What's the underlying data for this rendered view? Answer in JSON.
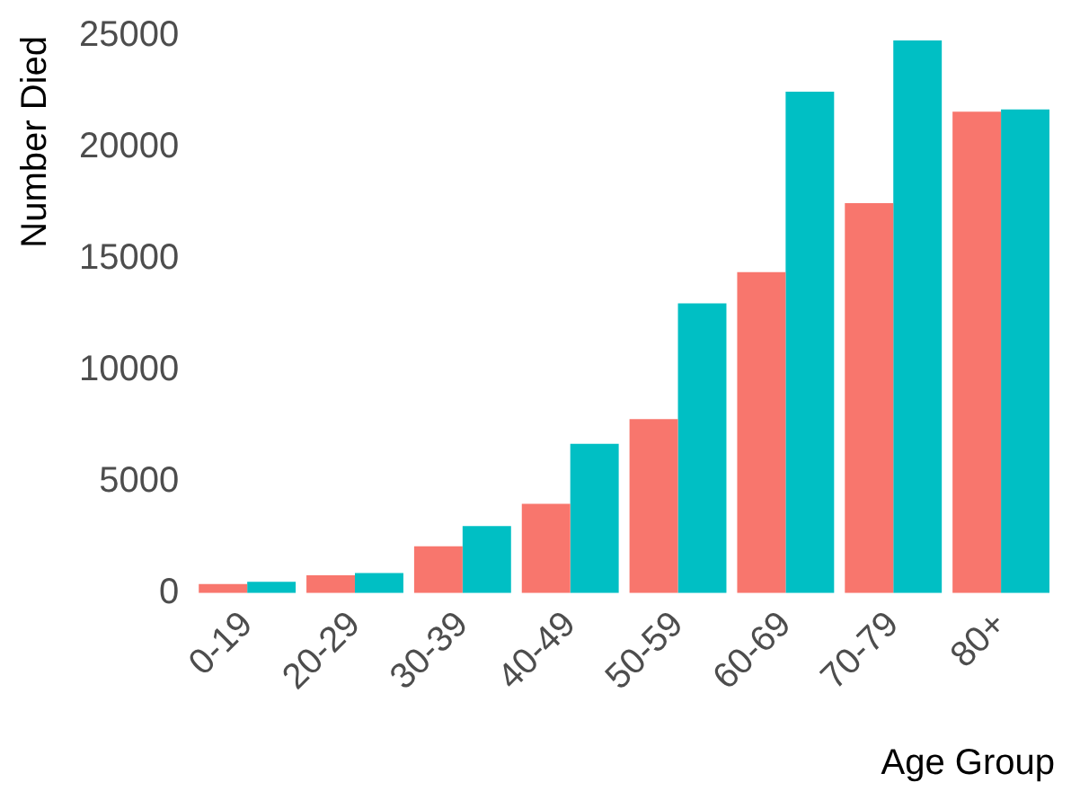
{
  "chart_data": {
    "type": "bar",
    "xlabel": "Age Group",
    "ylabel": "Number Died",
    "categories": [
      "0-19",
      "20-29",
      "30-39",
      "40-49",
      "50-59",
      "60-69",
      "70-79",
      "80+"
    ],
    "series": [
      {
        "color": "#f8766d",
        "values": [
          400,
          800,
          2100,
          4000,
          7800,
          14400,
          17500,
          21600
        ]
      },
      {
        "color": "#00bfc4",
        "values": [
          500,
          900,
          3000,
          6700,
          13000,
          22500,
          24800,
          21700
        ]
      }
    ],
    "ylim": [
      0,
      25000
    ],
    "yticks": [
      0,
      5000,
      10000,
      15000,
      20000,
      25000
    ],
    "grid": false,
    "legend": false
  }
}
